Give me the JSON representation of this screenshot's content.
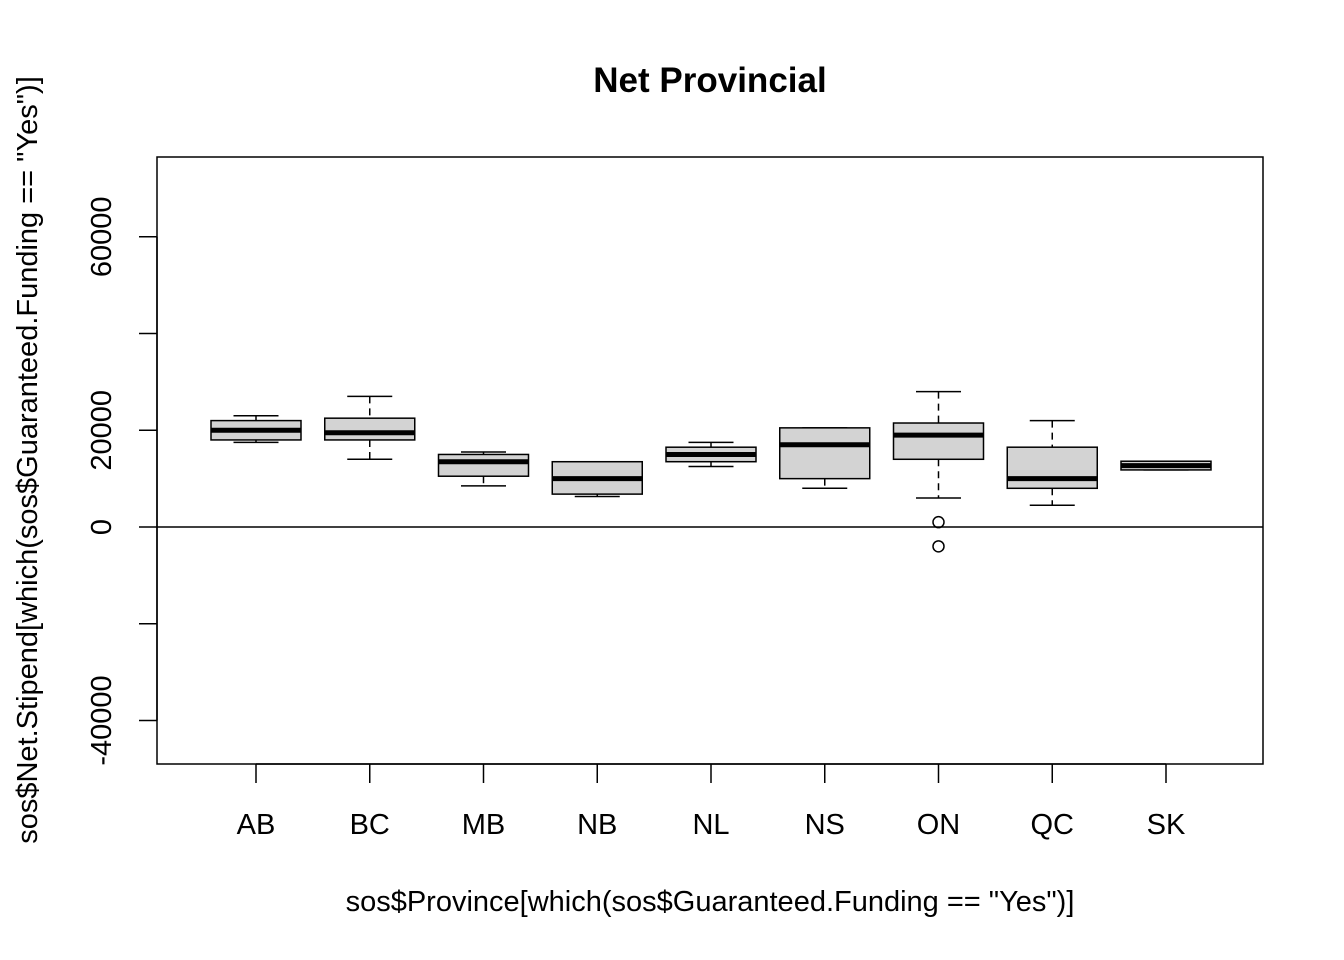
{
  "chart_data": {
    "type": "boxplot",
    "title": "Net Provincial",
    "xlabel": "sos$Province[which(sos$Guaranteed.Funding == \"Yes\")]",
    "ylabel": "sos$Net.Stipend[which(sos$Guaranteed.Funding == \"Yes\")]",
    "ylim": [
      -49000,
      76500
    ],
    "yticks": [
      -40000,
      -20000,
      0,
      20000,
      40000,
      60000
    ],
    "ytick_labels": [
      "-40000",
      "",
      "0",
      "20000",
      "",
      "60000"
    ],
    "reference_line_y": 0,
    "box_fill": "#d3d3d3",
    "categories": [
      "AB",
      "BC",
      "MB",
      "NB",
      "NL",
      "NS",
      "ON",
      "QC",
      "SK"
    ],
    "boxes": [
      {
        "category": "AB",
        "whisker_low": 17500,
        "q1": 18000,
        "median": 20000,
        "q3": 22000,
        "whisker_high": 23000,
        "outliers": []
      },
      {
        "category": "BC",
        "whisker_low": 14000,
        "q1": 18000,
        "median": 19500,
        "q3": 22500,
        "whisker_high": 27000,
        "outliers": []
      },
      {
        "category": "MB",
        "whisker_low": 8500,
        "q1": 10500,
        "median": 13500,
        "q3": 15000,
        "whisker_high": 15500,
        "outliers": []
      },
      {
        "category": "NB",
        "whisker_low": 6300,
        "q1": 6800,
        "median": 10000,
        "q3": 13500,
        "whisker_high": 13500,
        "outliers": []
      },
      {
        "category": "NL",
        "whisker_low": 12500,
        "q1": 13500,
        "median": 15000,
        "q3": 16500,
        "whisker_high": 17500,
        "outliers": []
      },
      {
        "category": "NS",
        "whisker_low": 8000,
        "q1": 10000,
        "median": 17000,
        "q3": 20500,
        "whisker_high": 20500,
        "outliers": []
      },
      {
        "category": "ON",
        "whisker_low": 6000,
        "q1": 14000,
        "median": 19000,
        "q3": 21500,
        "whisker_high": 28000,
        "outliers": [
          1000,
          -4000
        ]
      },
      {
        "category": "QC",
        "whisker_low": 4500,
        "q1": 8000,
        "median": 10000,
        "q3": 16500,
        "whisker_high": 22000,
        "outliers": []
      },
      {
        "category": "SK",
        "whisker_low": 11800,
        "q1": 11800,
        "median": 12700,
        "q3": 13600,
        "whisker_high": 13600,
        "outliers": []
      }
    ]
  }
}
